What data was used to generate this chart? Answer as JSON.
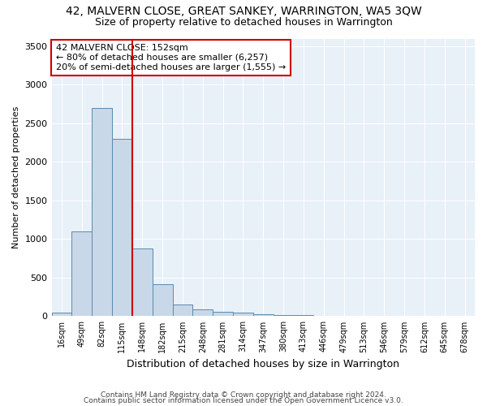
{
  "title": "42, MALVERN CLOSE, GREAT SANKEY, WARRINGTON, WA5 3QW",
  "subtitle": "Size of property relative to detached houses in Warrington",
  "xlabel": "Distribution of detached houses by size in Warrington",
  "ylabel": "Number of detached properties",
  "categories": [
    "16sqm",
    "49sqm",
    "82sqm",
    "115sqm",
    "148sqm",
    "182sqm",
    "215sqm",
    "248sqm",
    "281sqm",
    "314sqm",
    "347sqm",
    "380sqm",
    "413sqm",
    "446sqm",
    "479sqm",
    "513sqm",
    "546sqm",
    "579sqm",
    "612sqm",
    "645sqm",
    "678sqm"
  ],
  "values": [
    50,
    1100,
    2700,
    2300,
    880,
    420,
    155,
    90,
    60,
    50,
    30,
    18,
    10,
    5,
    3,
    2,
    1,
    1,
    0,
    0,
    0
  ],
  "bar_color": "#c8d8e8",
  "bar_edge_color": "#5a8ab0",
  "annotation_line1": "42 MALVERN CLOSE: 152sqm",
  "annotation_line2": "← 80% of detached houses are smaller (6,257)",
  "annotation_line3": "20% of semi-detached houses are larger (1,555) →",
  "vline_x_index": 3.5,
  "vline_color": "#cc0000",
  "box_color": "#cc0000",
  "ylim": [
    0,
    3600
  ],
  "yticks": [
    0,
    500,
    1000,
    1500,
    2000,
    2500,
    3000,
    3500
  ],
  "footer1": "Contains HM Land Registry data © Crown copyright and database right 2024.",
  "footer2": "Contains public sector information licensed under the Open Government Licence v3.0.",
  "bg_color": "#e8f0f8",
  "title_fontsize": 10,
  "subtitle_fontsize": 9,
  "ann_fontsize": 8
}
